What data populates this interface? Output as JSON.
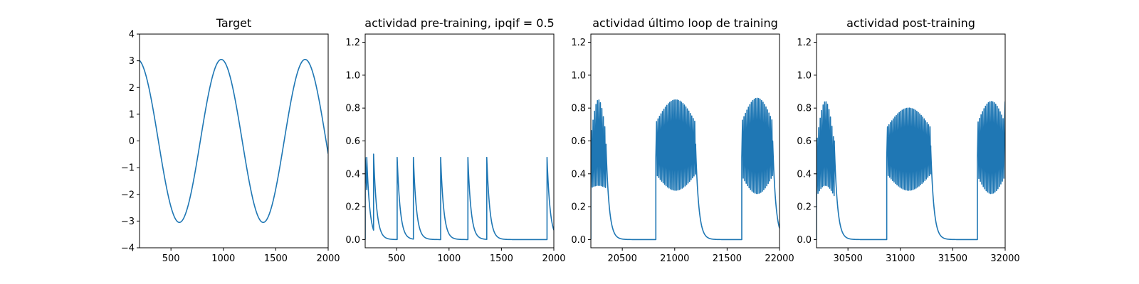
{
  "chart_data": [
    {
      "type": "line",
      "title": "Target",
      "xlim": [
        200,
        2000
      ],
      "ylim": [
        -4,
        4
      ],
      "xticks": [
        500,
        1000,
        1500,
        2000
      ],
      "yticks": [
        -4,
        -3,
        -2,
        -1,
        0,
        1,
        2,
        3,
        4
      ],
      "grid": false,
      "color": "#1f77b4",
      "series": [
        {
          "kind": "sine",
          "x_start": 200,
          "x_end": 2000,
          "amplitude": 3.05,
          "period": 800,
          "peak_at": 980
        }
      ]
    },
    {
      "type": "line",
      "title": "actividad pre-training, ipqif = 0.5",
      "xlim": [
        200,
        2000
      ],
      "ylim": [
        -0.05,
        1.25
      ],
      "xticks": [
        500,
        1000,
        1500,
        2000
      ],
      "yticks": [
        0.0,
        0.2,
        0.4,
        0.6,
        0.8,
        1.0,
        1.2
      ],
      "grid": false,
      "color": "#1f77b4",
      "series": [
        {
          "kind": "spike-decay",
          "x_start": 200,
          "x_end": 2000,
          "baseline": 0.0,
          "decay": 30,
          "spikes": [
            {
              "x": 200,
              "peak": 0.5
            },
            {
              "x": 215,
              "peak": 0.5
            },
            {
              "x": 280,
              "peak": 0.52
            },
            {
              "x": 505,
              "peak": 0.5
            },
            {
              "x": 660,
              "peak": 0.5
            },
            {
              "x": 920,
              "peak": 0.5
            },
            {
              "x": 1180,
              "peak": 0.5
            },
            {
              "x": 1360,
              "peak": 0.5
            },
            {
              "x": 1935,
              "peak": 0.5
            }
          ]
        }
      ]
    },
    {
      "type": "line",
      "title": "actividad último loop de training",
      "xlim": [
        20200,
        22000
      ],
      "ylim": [
        -0.05,
        1.25
      ],
      "xticks": [
        20500,
        21000,
        21500,
        22000
      ],
      "yticks": [
        0.0,
        0.2,
        0.4,
        0.6,
        0.8,
        1.0,
        1.2
      ],
      "grid": false,
      "color": "#1f77b4",
      "series": [
        {
          "kind": "burst-oscillation",
          "x_start": 20200,
          "x_end": 22000,
          "baseline": 0.0,
          "decay": 30,
          "osc_period": 14,
          "bursts": [
            {
              "start": 20200,
              "end": 20345,
              "start_level": 0.3,
              "peak_mid": 0.85,
              "trough_mid": 0.33,
              "final": 0.58
            },
            {
              "start": 20820,
              "end": 21200,
              "start_level": 0.5,
              "peak_mid": 0.85,
              "trough_mid": 0.3,
              "final": 0.58
            },
            {
              "start": 21640,
              "end": 21935,
              "start_level": 0.5,
              "peak_mid": 0.86,
              "trough_mid": 0.28,
              "final": 0.6
            }
          ]
        }
      ]
    },
    {
      "type": "line",
      "title": "actividad post-training",
      "xlim": [
        30200,
        32000
      ],
      "ylim": [
        -0.05,
        1.25
      ],
      "xticks": [
        30500,
        31000,
        31500,
        32000
      ],
      "yticks": [
        0.0,
        0.2,
        0.4,
        0.6,
        0.8,
        1.0,
        1.2
      ],
      "grid": false,
      "color": "#1f77b4",
      "series": [
        {
          "kind": "burst-oscillation",
          "x_start": 30200,
          "x_end": 32000,
          "baseline": 0.0,
          "decay": 30,
          "osc_period": 14,
          "bursts": [
            {
              "start": 30200,
              "end": 30370,
              "start_level": 0.2,
              "peak_mid": 0.84,
              "trough_mid": 0.33,
              "final": 0.6
            },
            {
              "start": 30870,
              "end": 31290,
              "start_level": 0.5,
              "peak_mid": 0.8,
              "trough_mid": 0.3,
              "final": 0.57
            },
            {
              "start": 31735,
              "end": 32000,
              "start_level": 0.5,
              "peak_mid": 0.84,
              "trough_mid": 0.28,
              "final": 0.84
            }
          ]
        }
      ]
    }
  ]
}
